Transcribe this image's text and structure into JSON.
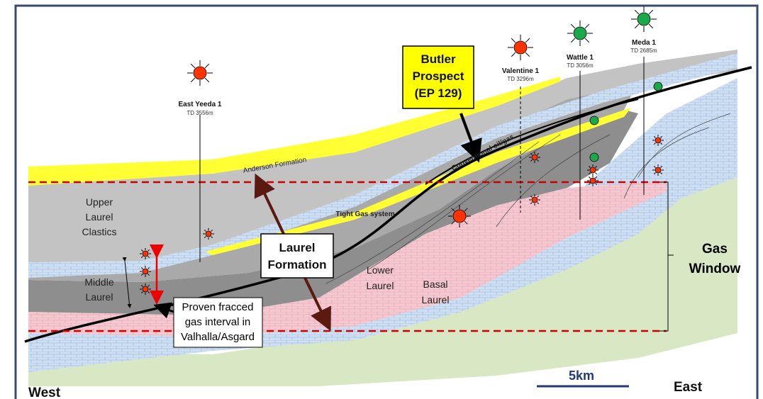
{
  "wells": [
    {
      "name": "East Yeeda 1",
      "depth": "TD 3556m"
    },
    {
      "name": "Valentine 1",
      "depth": "TD 3296m"
    },
    {
      "name": "Wattle 1",
      "depth": "TD 3056m"
    },
    {
      "name": "Meda 1",
      "depth": "TD 2685m"
    }
  ],
  "callouts": {
    "butler_prospect": [
      "Butler",
      "Prospect",
      "(EP 129)"
    ],
    "laurel_formation": [
      "Laurel",
      "Formation"
    ],
    "proven_interval": [
      "Proven fracced",
      "gas interval in",
      "Valhalla/Asgard"
    ]
  },
  "units": {
    "upper_laurel_clastics": [
      "Upper",
      "Laurel",
      "Clastics"
    ],
    "middle_laurel": [
      "Middle",
      "Laurel"
    ],
    "lower_laurel": [
      "Lower",
      "Laurel"
    ],
    "basal_laurel": [
      "Basal",
      "Laurel"
    ],
    "anderson_formation": "Anderson Formation",
    "conventional": "Conventional oil/gas",
    "tight_gas": "Tight Gas system"
  },
  "gas_window": [
    "Gas",
    "Window"
  ],
  "scale_bar": "5km",
  "directions": {
    "west": "West",
    "east": "East"
  }
}
